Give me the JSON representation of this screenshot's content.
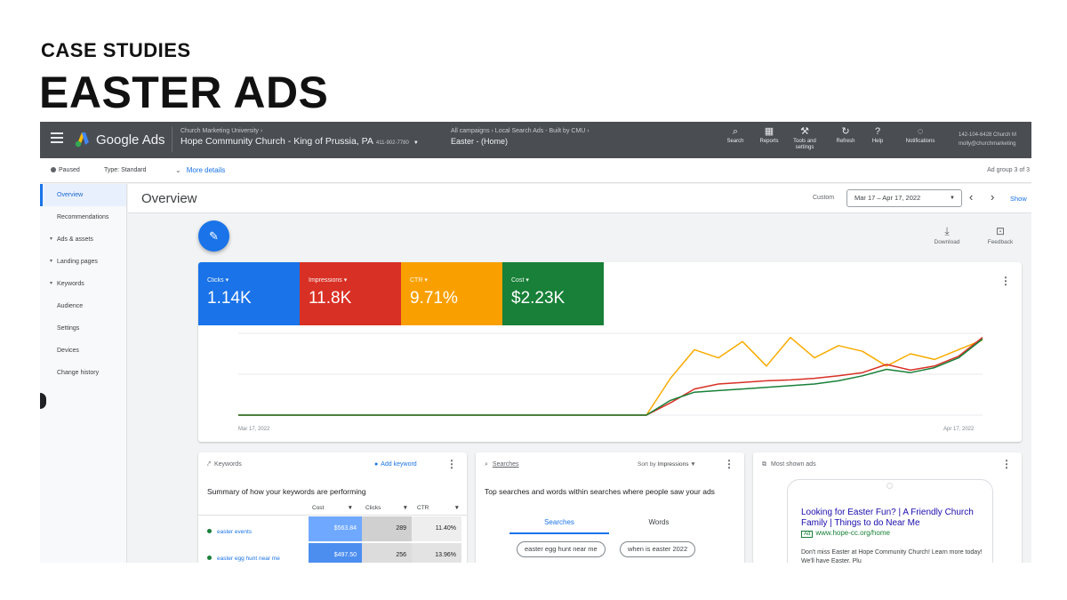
{
  "slide": {
    "kicker": "CASE STUDIES",
    "title": "EASTER ADS"
  },
  "topbar": {
    "brand": "Google Ads",
    "account_crumb": "Church Marketing University  ›",
    "account_name": "Hope Community Church - King of Prussia, PA",
    "account_id": "411-902-7780",
    "campaign_crumb": "All campaigns  ›  Local Search Ads - Built by CMU  ›",
    "campaign_name": "Easter - (Home)",
    "tools": [
      {
        "icon": "search-icon",
        "label": "Search"
      },
      {
        "icon": "reports-icon",
        "label": "Reports"
      },
      {
        "icon": "wrench-icon",
        "label": "Tools and settings"
      },
      {
        "icon": "refresh-icon",
        "label": "Refresh"
      },
      {
        "icon": "help-icon",
        "label": "Help"
      },
      {
        "icon": "bell-icon",
        "label": "Notifications"
      }
    ],
    "user_line1": "142-104-6428 Church M",
    "user_line2": "molly@churchmarketing"
  },
  "subbar": {
    "status": "Paused",
    "type": "Type: Standard",
    "more_details": "More details",
    "adgroup": "Ad group 3 of 3"
  },
  "sidebar": {
    "items": [
      {
        "label": "Overview",
        "active": true,
        "expand": false
      },
      {
        "label": "Recommendations",
        "active": false,
        "expand": false
      },
      {
        "label": "Ads & assets",
        "active": false,
        "expand": true
      },
      {
        "label": "Landing pages",
        "active": false,
        "expand": true
      },
      {
        "label": "Keywords",
        "active": false,
        "expand": true
      },
      {
        "label": "Audience",
        "active": false,
        "expand": false
      },
      {
        "label": "Settings",
        "active": false,
        "expand": false
      },
      {
        "label": "Devices",
        "active": false,
        "expand": false
      },
      {
        "label": "Change history",
        "active": false,
        "expand": false
      }
    ]
  },
  "main": {
    "title": "Overview",
    "date_label": "Custom",
    "date_range": "Mar 17 – Apr 17, 2022",
    "show": "Show",
    "download": "Download",
    "feedback": "Feedback"
  },
  "metrics": [
    {
      "label": "Clicks",
      "value": "1.14K",
      "color": "#1a73e8"
    },
    {
      "label": "Impressions",
      "value": "11.8K",
      "color": "#d93025"
    },
    {
      "label": "CTR",
      "value": "9.71%",
      "color": "#f9a000"
    },
    {
      "label": "Cost",
      "value": "$2.23K",
      "color": "#188038"
    }
  ],
  "chart_data": {
    "type": "line",
    "x_start": "Mar 17, 2022",
    "x_end": "Apr 17, 2022",
    "x": [
      1,
      2,
      3,
      4,
      5,
      6,
      7,
      8,
      9,
      10,
      11,
      12,
      13,
      14,
      15,
      16,
      17,
      18,
      19,
      20,
      21,
      22,
      23,
      24,
      25,
      26,
      27,
      28,
      29,
      30,
      31,
      32
    ],
    "grid": true,
    "series": [
      {
        "color": "#f9ab00",
        "values": [
          0,
          0,
          0,
          0,
          0,
          0,
          0,
          0,
          0,
          0,
          0,
          0,
          0,
          0,
          0,
          0,
          0,
          0,
          45,
          80,
          70,
          90,
          60,
          95,
          70,
          85,
          78,
          60,
          75,
          68,
          80,
          92
        ]
      },
      {
        "color": "#d93025",
        "values": [
          0,
          0,
          0,
          0,
          0,
          0,
          0,
          0,
          0,
          0,
          0,
          0,
          0,
          0,
          0,
          0,
          0,
          0,
          15,
          32,
          38,
          40,
          42,
          43,
          45,
          48,
          52,
          62,
          55,
          60,
          72,
          95
        ]
      },
      {
        "color": "#188038",
        "values": [
          0,
          0,
          0,
          0,
          0,
          0,
          0,
          0,
          0,
          0,
          0,
          0,
          0,
          0,
          0,
          0,
          0,
          0,
          18,
          28,
          30,
          32,
          34,
          36,
          38,
          42,
          48,
          56,
          52,
          58,
          70,
          93
        ]
      }
    ]
  },
  "keywords": {
    "title": "Keywords",
    "add": "Add keyword",
    "subtitle": "Summary of how your keywords are performing",
    "columns": [
      "Cost",
      "Clicks",
      "CTR"
    ],
    "rows": [
      {
        "keyword": "easter events",
        "cost": "$563.84",
        "clicks": "289",
        "ctr": "11.40%"
      },
      {
        "keyword": "easter egg hunt near me",
        "cost": "$497.50",
        "clicks": "256",
        "ctr": "13.96%"
      }
    ]
  },
  "searches": {
    "title": "Searches",
    "sort_label": "Sort by",
    "sort_value": "Impressions",
    "subtitle": "Top searches and words within searches where people saw your ads",
    "tabs": [
      "Searches",
      "Words"
    ],
    "chips": [
      "easter egg hunt near me",
      "when is easter 2022"
    ]
  },
  "ads": {
    "title": "Most shown ads",
    "headline": "Looking for Easter Fun? | A Friendly Church Family | Things to do Near Me",
    "badge": "Ad",
    "url": "www.hope-cc.org/home",
    "description": "Don't miss Easter at Hope Community Church! Learn more today! We'll have Easter. Plu"
  }
}
